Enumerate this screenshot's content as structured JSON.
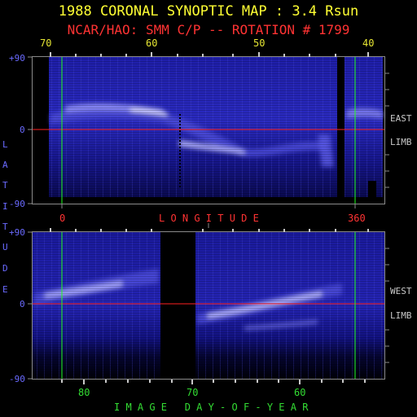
{
  "title": "1988 CORONAL SYNOPTIC MAP : 3.4 Rsun",
  "subtitle": "NCAR/HAO: SMM C/P -- ROTATION # 1799",
  "top_panel": {
    "longitude_ticks": [
      "70",
      "60",
      "50",
      "40"
    ],
    "latitude_labels": {
      "top": "+90",
      "middle": "0",
      "bottom": "-90"
    },
    "limb_label": [
      "EAST",
      "LIMB"
    ]
  },
  "longitude_axis": {
    "left_label": "0",
    "title": "L O N G I T U D E",
    "right_label": "360"
  },
  "latitude_title": [
    "L",
    "A",
    "T",
    "I",
    "T",
    "U",
    "D",
    "E"
  ],
  "bottom_panel": {
    "latitude_labels": {
      "top": "+90",
      "middle": "0",
      "bottom": "-90"
    },
    "limb_label": [
      "WEST",
      "LIMB"
    ],
    "day_ticks": [
      "80",
      "70",
      "60"
    ]
  },
  "day_axis_title": "I M A G E   D A Y - O F - Y E A R",
  "colors": {
    "title": "#ffff33",
    "subtitle": "#ff3333",
    "equator_line": "#ff2020",
    "meridian_line": "#20ff20",
    "map_base": "#1a1a9c",
    "streamer": "#b8b8ff"
  }
}
